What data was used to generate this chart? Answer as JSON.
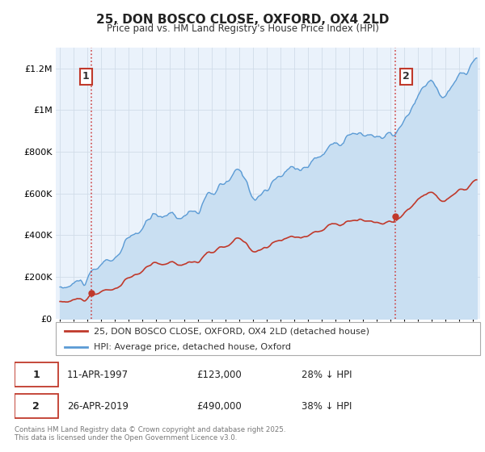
{
  "title": "25, DON BOSCO CLOSE, OXFORD, OX4 2LD",
  "subtitle": "Price paid vs. HM Land Registry's House Price Index (HPI)",
  "ylabel_ticks": [
    "£0",
    "£200K",
    "£400K",
    "£600K",
    "£800K",
    "£1M",
    "£1.2M"
  ],
  "ytick_values": [
    0,
    200000,
    400000,
    600000,
    800000,
    1000000,
    1200000
  ],
  "ylim": [
    0,
    1300000
  ],
  "xlim_start": 1994.7,
  "xlim_end": 2025.5,
  "hpi_color": "#5b9bd5",
  "hpi_fill_color": "#c9dff2",
  "price_color": "#c0392b",
  "chart_bg": "#eaf2fb",
  "marker1_x": 1997.28,
  "marker1_y": 123000,
  "marker2_x": 2019.32,
  "marker2_y": 490000,
  "legend_label_red": "25, DON BOSCO CLOSE, OXFORD, OX4 2LD (detached house)",
  "legend_label_blue": "HPI: Average price, detached house, Oxford",
  "marker1_date": "11-APR-1997",
  "marker1_price": "£123,000",
  "marker1_hpi": "28% ↓ HPI",
  "marker2_date": "26-APR-2019",
  "marker2_price": "£490,000",
  "marker2_hpi": "38% ↓ HPI",
  "footer": "Contains HM Land Registry data © Crown copyright and database right 2025.\nThis data is licensed under the Open Government Licence v3.0.",
  "background_color": "#ffffff",
  "grid_color": "#d0dce8"
}
